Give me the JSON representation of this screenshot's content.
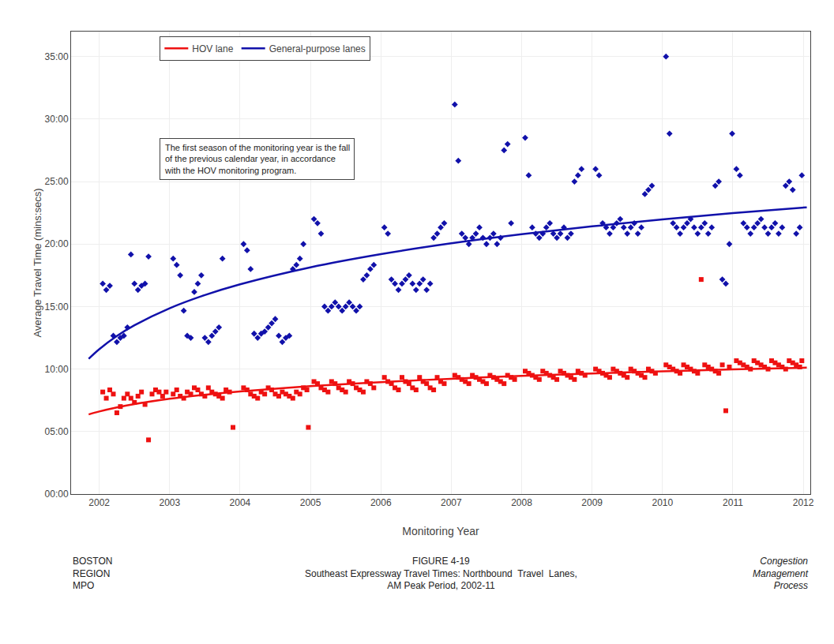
{
  "chart_data": {
    "type": "scatter",
    "xlabel": "Monitoring Year",
    "ylabel": "Average Travel Time (mins:secs)",
    "xlim": [
      2001.6,
      2012.1
    ],
    "xticks": [
      2002,
      2003,
      2004,
      2005,
      2006,
      2007,
      2008,
      2009,
      2010,
      2011,
      2012
    ],
    "ylim": [
      0,
      2220
    ],
    "yticks": [
      {
        "value": 0,
        "label": "00:00"
      },
      {
        "value": 300,
        "label": "05:00"
      },
      {
        "value": 600,
        "label": "10:00"
      },
      {
        "value": 900,
        "label": "15:00"
      },
      {
        "value": 1200,
        "label": "20:00"
      },
      {
        "value": 1500,
        "label": "25:00"
      },
      {
        "value": 1800,
        "label": "30:00"
      },
      {
        "value": 2100,
        "label": "35:00"
      }
    ],
    "grid": true,
    "legend": "upper left",
    "annotations": [
      "The first season of the monitoring year is the fall\nof the previous calendar year, in accordance\nwith the HOV monitoring program."
    ],
    "footer": [
      "BOSTON\nREGION\nMPO",
      "FIGURE 4-19\nSoutheast Expressway Travel Times: Northbound  Travel  Lanes,\nAM Peak Period, 2002-11",
      "Congestion\nManagement\nProcess"
    ],
    "series": [
      {
        "type": "scatter",
        "marker": "square",
        "color": "#EE1111",
        "x": [
          2002.05,
          2002.1,
          2002.15,
          2002.2,
          2002.25,
          2002.3,
          2002.35,
          2002.4,
          2002.45,
          2002.5,
          2002.55,
          2002.6,
          2002.65,
          2002.7,
          2002.75,
          2002.8,
          2002.85,
          2002.9,
          2002.95,
          2003.05,
          2003.1,
          2003.15,
          2003.2,
          2003.25,
          2003.3,
          2003.35,
          2003.4,
          2003.45,
          2003.5,
          2003.55,
          2003.6,
          2003.65,
          2003.7,
          2003.75,
          2003.8,
          2003.85,
          2003.9,
          2004.05,
          2004.1,
          2004.15,
          2004.2,
          2004.25,
          2004.3,
          2004.35,
          2004.4,
          2004.45,
          2004.5,
          2004.55,
          2004.6,
          2004.65,
          2004.7,
          2004.75,
          2004.8,
          2004.85,
          2004.9,
          2004.95,
          2004.97,
          2005.05,
          2005.1,
          2005.15,
          2005.2,
          2005.25,
          2005.3,
          2005.35,
          2005.4,
          2005.45,
          2005.5,
          2005.55,
          2005.6,
          2005.65,
          2005.7,
          2005.75,
          2005.8,
          2005.85,
          2005.9,
          2006.05,
          2006.1,
          2006.15,
          2006.2,
          2006.25,
          2006.3,
          2006.35,
          2006.4,
          2006.45,
          2006.5,
          2006.55,
          2006.6,
          2006.65,
          2006.7,
          2006.75,
          2006.8,
          2006.85,
          2006.9,
          2007.05,
          2007.1,
          2007.15,
          2007.2,
          2007.25,
          2007.3,
          2007.35,
          2007.4,
          2007.45,
          2007.5,
          2007.55,
          2007.6,
          2007.65,
          2007.7,
          2007.75,
          2007.8,
          2007.85,
          2007.9,
          2008.05,
          2008.1,
          2008.15,
          2008.2,
          2008.25,
          2008.3,
          2008.35,
          2008.4,
          2008.45,
          2008.5,
          2008.55,
          2008.6,
          2008.65,
          2008.7,
          2008.75,
          2008.8,
          2008.85,
          2008.9,
          2009.05,
          2009.1,
          2009.15,
          2009.2,
          2009.25,
          2009.3,
          2009.35,
          2009.4,
          2009.45,
          2009.5,
          2009.55,
          2009.6,
          2009.65,
          2009.7,
          2009.75,
          2009.8,
          2009.85,
          2009.9,
          2010.05,
          2010.1,
          2010.15,
          2010.2,
          2010.25,
          2010.3,
          2010.35,
          2010.4,
          2010.45,
          2010.5,
          2010.55,
          2010.6,
          2010.65,
          2010.7,
          2010.75,
          2010.8,
          2010.85,
          2010.9,
          2010.95,
          2011.05,
          2011.1,
          2011.15,
          2011.2,
          2011.25,
          2011.3,
          2011.35,
          2011.4,
          2011.45,
          2011.5,
          2011.55,
          2011.6,
          2011.65,
          2011.7,
          2011.75,
          2011.8,
          2011.85,
          2011.9,
          2011.95,
          2011.98
        ],
        "values": [
          490,
          460,
          500,
          480,
          390,
          420,
          460,
          480,
          460,
          440,
          470,
          490,
          430,
          260,
          480,
          500,
          490,
          470,
          490,
          480,
          500,
          470,
          460,
          490,
          480,
          510,
          500,
          480,
          470,
          510,
          490,
          480,
          470,
          460,
          500,
          490,
          320,
          510,
          500,
          480,
          470,
          460,
          490,
          480,
          510,
          500,
          480,
          470,
          490,
          480,
          470,
          460,
          490,
          480,
          510,
          500,
          320,
          540,
          530,
          510,
          500,
          490,
          540,
          530,
          510,
          500,
          490,
          540,
          530,
          510,
          500,
          490,
          540,
          530,
          510,
          560,
          540,
          530,
          510,
          500,
          560,
          540,
          530,
          510,
          500,
          560,
          540,
          530,
          510,
          500,
          560,
          540,
          530,
          570,
          560,
          550,
          540,
          530,
          570,
          560,
          550,
          540,
          530,
          570,
          560,
          550,
          540,
          530,
          570,
          560,
          550,
          590,
          580,
          570,
          560,
          550,
          590,
          580,
          570,
          560,
          550,
          590,
          580,
          570,
          560,
          550,
          590,
          580,
          570,
          600,
          590,
          580,
          570,
          560,
          600,
          590,
          580,
          570,
          560,
          600,
          590,
          580,
          570,
          560,
          600,
          590,
          580,
          620,
          610,
          600,
          590,
          580,
          620,
          610,
          600,
          590,
          580,
          1030,
          620,
          610,
          600,
          590,
          580,
          620,
          400,
          610,
          640,
          630,
          620,
          610,
          600,
          640,
          630,
          620,
          610,
          600,
          640,
          630,
          620,
          610,
          600,
          640,
          630,
          620,
          610,
          640
        ]
      },
      {
        "type": "scatter",
        "marker": "diamond",
        "color": "#1111AA",
        "x": [
          2002.05,
          2002.1,
          2002.15,
          2002.2,
          2002.25,
          2002.3,
          2002.35,
          2002.4,
          2002.45,
          2002.5,
          2002.55,
          2002.6,
          2002.65,
          2002.7,
          2003.05,
          2003.1,
          2003.15,
          2003.2,
          2003.25,
          2003.3,
          2003.35,
          2003.4,
          2003.45,
          2003.5,
          2003.55,
          2003.6,
          2003.65,
          2003.7,
          2003.75,
          2004.05,
          2004.1,
          2004.15,
          2004.2,
          2004.25,
          2004.3,
          2004.35,
          2004.4,
          2004.45,
          2004.5,
          2004.55,
          2004.6,
          2004.65,
          2004.7,
          2004.75,
          2004.8,
          2004.85,
          2004.9,
          2005.05,
          2005.1,
          2005.15,
          2005.2,
          2005.25,
          2005.3,
          2005.35,
          2005.4,
          2005.45,
          2005.5,
          2005.55,
          2005.6,
          2005.65,
          2005.7,
          2005.75,
          2005.8,
          2005.85,
          2005.9,
          2006.05,
          2006.1,
          2006.15,
          2006.2,
          2006.25,
          2006.3,
          2006.35,
          2006.4,
          2006.45,
          2006.5,
          2006.55,
          2006.6,
          2006.65,
          2006.7,
          2006.75,
          2006.8,
          2006.85,
          2006.9,
          2007.05,
          2007.1,
          2007.15,
          2007.2,
          2007.25,
          2007.3,
          2007.35,
          2007.4,
          2007.45,
          2007.5,
          2007.55,
          2007.6,
          2007.65,
          2007.7,
          2007.75,
          2007.8,
          2007.85,
          2008.05,
          2008.1,
          2008.15,
          2008.2,
          2008.25,
          2008.3,
          2008.35,
          2008.4,
          2008.45,
          2008.5,
          2008.55,
          2008.6,
          2008.65,
          2008.7,
          2008.75,
          2008.8,
          2008.85,
          2009.05,
          2009.1,
          2009.15,
          2009.2,
          2009.25,
          2009.3,
          2009.35,
          2009.4,
          2009.45,
          2009.5,
          2009.55,
          2009.6,
          2009.65,
          2009.7,
          2009.75,
          2009.8,
          2009.85,
          2010.05,
          2010.1,
          2010.15,
          2010.2,
          2010.25,
          2010.3,
          2010.35,
          2010.4,
          2010.45,
          2010.5,
          2010.55,
          2010.6,
          2010.65,
          2010.7,
          2010.75,
          2010.8,
          2010.85,
          2010.9,
          2010.95,
          2010.99,
          2011.05,
          2011.1,
          2011.15,
          2011.2,
          2011.25,
          2011.3,
          2011.35,
          2011.4,
          2011.45,
          2011.5,
          2011.55,
          2011.6,
          2011.65,
          2011.7,
          2011.75,
          2011.8,
          2011.85,
          2011.9,
          2011.95,
          2011.98
        ],
        "values": [
          1010,
          980,
          1000,
          760,
          730,
          750,
          760,
          800,
          1150,
          1010,
          980,
          1000,
          1010,
          1140,
          1130,
          1100,
          1050,
          880,
          760,
          750,
          970,
          1010,
          1050,
          750,
          730,
          760,
          780,
          800,
          1130,
          1200,
          1170,
          1080,
          770,
          750,
          770,
          780,
          800,
          820,
          840,
          760,
          730,
          750,
          760,
          1080,
          1100,
          1130,
          1200,
          1320,
          1300,
          1250,
          900,
          880,
          900,
          920,
          900,
          880,
          900,
          920,
          900,
          880,
          900,
          1030,
          1050,
          1080,
          1100,
          1280,
          1250,
          1030,
          1010,
          980,
          1010,
          1030,
          1050,
          1010,
          980,
          1010,
          1030,
          980,
          1010,
          1230,
          1250,
          1280,
          1300,
          1870,
          1600,
          1250,
          1230,
          1200,
          1230,
          1250,
          1280,
          1230,
          1200,
          1230,
          1250,
          1200,
          1230,
          1650,
          1680,
          1300,
          1710,
          1530,
          1280,
          1250,
          1230,
          1250,
          1280,
          1300,
          1250,
          1230,
          1250,
          1280,
          1230,
          1250,
          1500,
          1530,
          1560,
          1560,
          1530,
          1300,
          1280,
          1250,
          1280,
          1300,
          1320,
          1280,
          1250,
          1280,
          1300,
          1250,
          1280,
          1440,
          1460,
          1480,
          2100,
          1730,
          1300,
          1280,
          1250,
          1280,
          1300,
          1320,
          1280,
          1250,
          1280,
          1300,
          1250,
          1280,
          1480,
          1500,
          1030,
          1010,
          1200,
          1730,
          1560,
          1530,
          1300,
          1280,
          1250,
          1280,
          1300,
          1320,
          1280,
          1250,
          1280,
          1300,
          1250,
          1280,
          1480,
          1500,
          1460,
          1250,
          1280,
          1530
        ]
      },
      {
        "type": "line",
        "name": "HOV lane",
        "color": "#EE1111",
        "x": [
          2001.85,
          2002,
          2002.25,
          2002.5,
          2003,
          2003.5,
          2004,
          2005,
          2006,
          2007,
          2008,
          2009,
          2010,
          2011,
          2012.05
        ],
        "values": [
          382.2,
          396.4,
          415.9,
          431.9,
          457.1,
          476.7,
          492.6,
          517.8,
          537.4,
          553.4,
          566.9,
          578.6,
          588.9,
          598.1,
          606.9
        ]
      },
      {
        "type": "line",
        "name": "General-purpose lanes",
        "color": "#1111AA",
        "x": [
          2001.85,
          2002,
          2002.25,
          2002.5,
          2003,
          2003.5,
          2004,
          2005,
          2006,
          2007,
          2008,
          2009,
          2010,
          2011,
          2012.05
        ],
        "values": [
          649.2,
          695.3,
          758.6,
          810.3,
          891.9,
          955.2,
          1006.9,
          1088.5,
          1151.7,
          1203.5,
          1247.2,
          1285.0,
          1318.4,
          1348.3,
          1376.6
        ]
      }
    ]
  }
}
